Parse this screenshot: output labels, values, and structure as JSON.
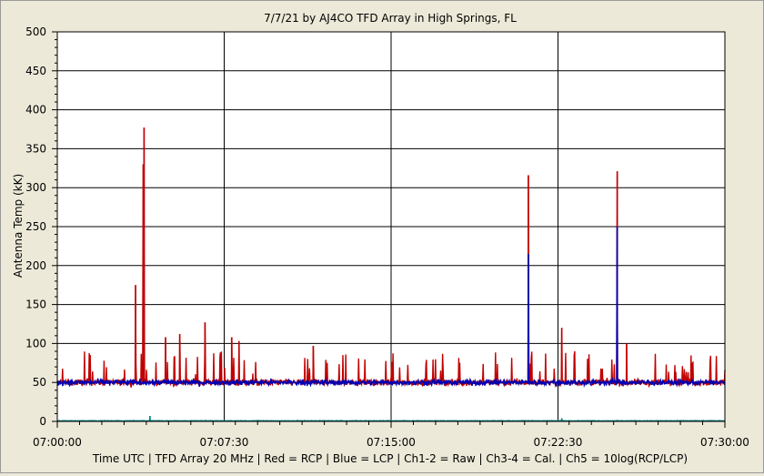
{
  "chart_data": {
    "type": "line",
    "title": "7/7/21  by  AJ4CO TFD Array  in  High Springs, FL",
    "ylabel": "Antenna Temp (kK)",
    "xlabel": "Time UTC | TFD Array 20 MHz | Red = RCP | Blue = LCP | Ch1-2 = Raw | Ch3-4 = Cal. | Ch5 = 10log(RCP/LCP)",
    "ylim": [
      0,
      500
    ],
    "xlim_seconds_from_start": [
      0,
      1800
    ],
    "x_tick_labels": [
      "07:00:00",
      "07:07:30",
      "07:15:00",
      "07:22:30",
      "07:30:00"
    ],
    "y_tick_labels": [
      "0",
      "50",
      "100",
      "150",
      "200",
      "250",
      "300",
      "350",
      "400",
      "450",
      "500"
    ],
    "grid": true,
    "series": [
      {
        "name": "RCP",
        "color": "#c00000",
        "baseline": 50,
        "peaks": [
          {
            "t": "07:03:31",
            "value": 175
          },
          {
            "t": "07:03:52",
            "value": 330
          },
          {
            "t": "07:03:54",
            "value": 377
          },
          {
            "t": "07:04:52",
            "value": 108
          },
          {
            "t": "07:05:30",
            "value": 112
          },
          {
            "t": "07:06:38",
            "value": 127
          },
          {
            "t": "07:07:50",
            "value": 108
          },
          {
            "t": "07:08:10",
            "value": 103
          },
          {
            "t": "07:11:30",
            "value": 97
          },
          {
            "t": "07:21:10",
            "value": 316
          },
          {
            "t": "07:22:40",
            "value": 120
          },
          {
            "t": "07:25:10",
            "value": 321
          },
          {
            "t": "07:25:35",
            "value": 100
          }
        ]
      },
      {
        "name": "LCP",
        "color": "#0000b4",
        "baseline": 50,
        "peaks": [
          {
            "t": "07:21:10",
            "value": 215
          },
          {
            "t": "07:25:10",
            "value": 250
          }
        ]
      },
      {
        "name": "Ch5",
        "color": "#008080",
        "baseline": 1,
        "peaks": [
          {
            "t": "07:04:10",
            "value": 7
          },
          {
            "t": "07:22:40",
            "value": 4
          }
        ]
      }
    ]
  }
}
